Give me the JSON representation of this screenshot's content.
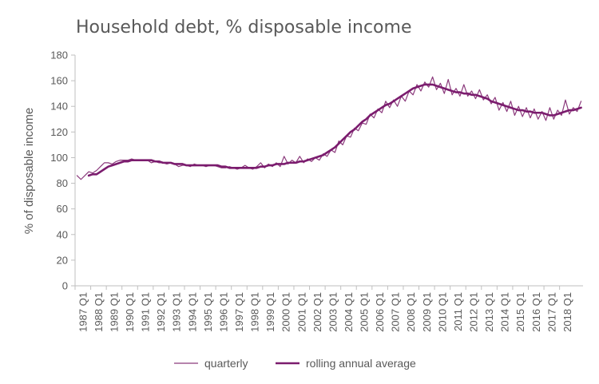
{
  "chart_data": {
    "type": "line",
    "title": "Household debt, % disposable income",
    "xlabel": "",
    "ylabel": "% of disposable income",
    "ylim": [
      0,
      180
    ],
    "yticks": [
      0,
      20,
      40,
      60,
      80,
      100,
      120,
      140,
      160,
      180
    ],
    "xticks": [
      "1987 Q1",
      "1988 Q1",
      "1989 Q1",
      "1990 Q1",
      "1991 Q1",
      "1992 Q1",
      "1993 Q1",
      "1994 Q1",
      "1995 Q1",
      "1996 Q1",
      "1997 Q1",
      "1998 Q1",
      "1999 Q1",
      "2000 Q1",
      "2001 Q1",
      "2002 Q1",
      "2003 Q1",
      "2004 Q1",
      "2005 Q1",
      "2006 Q1",
      "2007 Q1",
      "2008 Q1",
      "2009 Q1",
      "2010 Q1",
      "2011 Q1",
      "2012 Q1",
      "2013 Q1",
      "2014 Q1",
      "2015 Q1",
      "2016 Q1",
      "2017 Q1",
      "2018 Q1"
    ],
    "x_start": "1987 Q1",
    "grid": false,
    "legend_position": "bottom",
    "series": [
      {
        "name": "quarterly",
        "color": "#8b3a7c",
        "values": [
          86,
          83,
          86,
          89,
          88,
          90,
          93,
          96,
          96,
          95,
          97,
          98,
          98,
          98,
          99,
          98,
          98,
          98,
          98,
          96,
          97,
          96,
          96,
          95,
          96,
          95,
          93,
          94,
          94,
          93,
          95,
          94,
          94,
          93,
          94,
          94,
          93,
          92,
          92,
          93,
          92,
          91,
          92,
          94,
          92,
          91,
          93,
          96,
          92,
          95,
          93,
          96,
          93,
          101,
          95,
          98,
          96,
          101,
          96,
          99,
          97,
          100,
          98,
          103,
          101,
          106,
          104,
          113,
          110,
          117,
          116,
          123,
          121,
          127,
          126,
          134,
          131,
          138,
          135,
          144,
          139,
          145,
          140,
          148,
          144,
          152,
          149,
          157,
          152,
          159,
          155,
          163,
          153,
          158,
          150,
          161,
          149,
          154,
          148,
          157,
          148,
          152,
          146,
          153,
          145,
          149,
          142,
          147,
          137,
          143,
          136,
          144,
          133,
          140,
          132,
          139,
          131,
          138,
          130,
          136,
          129,
          139,
          130,
          137,
          133,
          145,
          134,
          139,
          136,
          144
        ]
      },
      {
        "name": "rolling annual average",
        "color": "#7b1c6e",
        "values": [
          null,
          null,
          null,
          86,
          87,
          87,
          89,
          91,
          93,
          94,
          95,
          96,
          97,
          97,
          98,
          98,
          98,
          98,
          98,
          98,
          97,
          97,
          96,
          96,
          96,
          95,
          95,
          95,
          94,
          94,
          94,
          94,
          94,
          94,
          94,
          94,
          94,
          93,
          93,
          92,
          92,
          92,
          92,
          92,
          92,
          92,
          92,
          93,
          93,
          94,
          94,
          95,
          95,
          95,
          96,
          96,
          96,
          97,
          97,
          98,
          99,
          100,
          101,
          102,
          104,
          106,
          108,
          111,
          114,
          117,
          120,
          122,
          125,
          128,
          130,
          133,
          135,
          137,
          139,
          141,
          142,
          144,
          146,
          148,
          150,
          152,
          154,
          155,
          156,
          157,
          157,
          157,
          156,
          155,
          154,
          153,
          152,
          151,
          151,
          150,
          150,
          149,
          149,
          148,
          147,
          146,
          144,
          143,
          142,
          141,
          140,
          139,
          138,
          137,
          137,
          136,
          136,
          135,
          135,
          135,
          134,
          133,
          133,
          134,
          135,
          136,
          137,
          137,
          138,
          139
        ]
      }
    ]
  }
}
